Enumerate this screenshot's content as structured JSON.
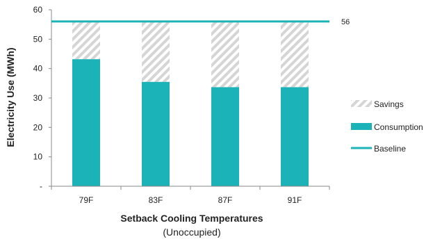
{
  "chart_data": {
    "type": "bar",
    "title": "",
    "xlabel": "Setback Cooling Temperatures",
    "xlabel_sub": "(Unoccupied)",
    "ylabel": "Electricity Use (MWh)",
    "categories": [
      "79F",
      "83F",
      "87F",
      "91F"
    ],
    "y_ticks": [
      "-",
      "10",
      "20",
      "30",
      "40",
      "50",
      "60"
    ],
    "ylim": [
      0,
      60
    ],
    "grid": false,
    "legend_position": "right",
    "series": [
      {
        "name": "Consumption",
        "values": [
          43.2,
          35.5,
          33.7,
          33.7
        ],
        "color": "#1bb3b8"
      },
      {
        "name": "Savings",
        "values": [
          12.8,
          20.5,
          22.3,
          22.3
        ],
        "color": "#d5d5d5",
        "pattern": "diagonal-hatch"
      }
    ],
    "baseline": {
      "name": "Baseline",
      "value": 56,
      "label": "56",
      "color": "#1bb3b8"
    }
  }
}
